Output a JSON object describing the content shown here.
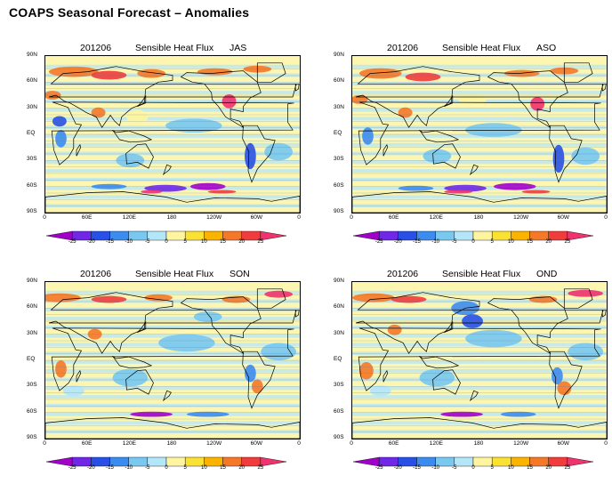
{
  "page_title": "COAPS Seasonal Forecast – Anomalies",
  "panels": [
    {
      "date": "201206",
      "variable": "Sensible Heat Flux",
      "season": "JAS"
    },
    {
      "date": "201206",
      "variable": "Sensible Heat Flux",
      "season": "ASO"
    },
    {
      "date": "201206",
      "variable": "Sensible Heat Flux",
      "season": "SON"
    },
    {
      "date": "201206",
      "variable": "Sensible Heat Flux",
      "season": "OND"
    }
  ],
  "lat_labels": [
    "90N",
    "60N",
    "30N",
    "EQ",
    "30S",
    "60S",
    "90S"
  ],
  "lon_labels": [
    "0",
    "60E",
    "120E",
    "180",
    "120W",
    "60W",
    "0"
  ],
  "colorbar": {
    "levels": [
      "-25",
      "-20",
      "-15",
      "-10",
      "-5",
      "0",
      "5",
      "10",
      "15",
      "20",
      "25"
    ],
    "colors": [
      "#a000c8",
      "#6e28e6",
      "#2850e6",
      "#3c8cf0",
      "#78c8f0",
      "#b4e6fa",
      "#fff5a0",
      "#fae132",
      "#fab400",
      "#f57828",
      "#f03c3c",
      "#f0326e"
    ]
  }
}
